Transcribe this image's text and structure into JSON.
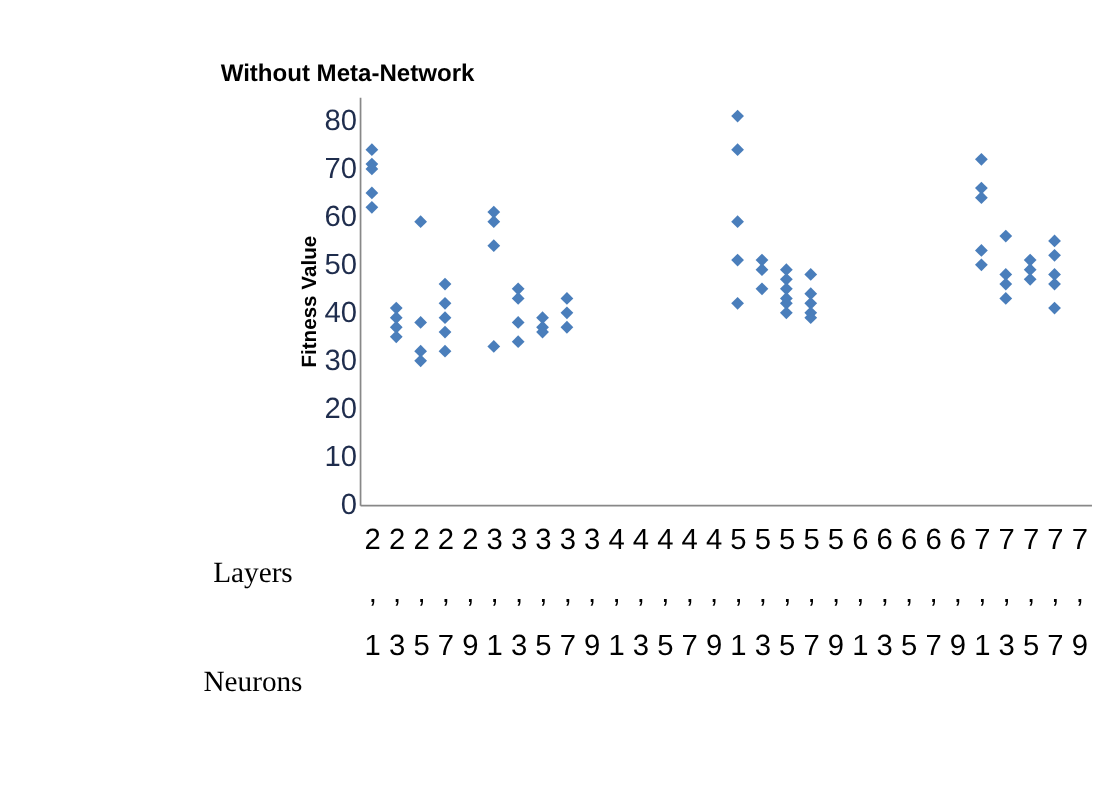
{
  "chart_data": {
    "type": "scatter",
    "title": "Without Meta-Network",
    "ylabel": "Fitness Value",
    "categories": [
      "2,1",
      "2,3",
      "2,5",
      "2,7",
      "2,9",
      "3,1",
      "3,3",
      "3,5",
      "3,7",
      "3,9",
      "4,1",
      "4,3",
      "4,5",
      "4,7",
      "4,9",
      "5,1",
      "5,3",
      "5,5",
      "5,7",
      "5,9",
      "6,1",
      "6,3",
      "6,5",
      "6,7",
      "6,9",
      "7,1",
      "7,3",
      "7,5",
      "7,7",
      "7,9"
    ],
    "series": [
      {
        "color": "#4a7ebb",
        "x": [
          "2,1",
          "2,1",
          "2,1",
          "2,1",
          "2,1",
          "2,3",
          "2,3",
          "2,3",
          "2,3",
          "2,5",
          "2,5",
          "2,5",
          "2,5",
          "2,7",
          "2,7",
          "2,7",
          "2,7",
          "2,7",
          "3,1",
          "3,1",
          "3,1",
          "3,1",
          "3,3",
          "3,3",
          "3,3",
          "3,3",
          "3,5",
          "3,5",
          "3,5",
          "3,7",
          "3,7",
          "3,7",
          "5,1",
          "5,1",
          "5,1",
          "5,1",
          "5,1",
          "5,3",
          "5,3",
          "5,3",
          "5,5",
          "5,5",
          "5,5",
          "5,5",
          "5,5",
          "5,5",
          "5,7",
          "5,7",
          "5,7",
          "5,7",
          "5,7",
          "7,1",
          "7,1",
          "7,1",
          "7,1",
          "7,1",
          "7,3",
          "7,3",
          "7,3",
          "7,3",
          "7,5",
          "7,5",
          "7,5",
          "7,7",
          "7,7",
          "7,7",
          "7,7",
          "7,7"
        ],
        "values": [
          74,
          71,
          70,
          65,
          62,
          41,
          39,
          37,
          35,
          59,
          38,
          32,
          30,
          46,
          42,
          39,
          36,
          32,
          61,
          59,
          54,
          33,
          45,
          43,
          38,
          34,
          39,
          37,
          36,
          43,
          40,
          37,
          81,
          74,
          59,
          51,
          42,
          51,
          49,
          45,
          49,
          47,
          45,
          43,
          42,
          40,
          48,
          44,
          42,
          40,
          39,
          72,
          66,
          64,
          53,
          50,
          56,
          48,
          46,
          43,
          51,
          49,
          47,
          55,
          52,
          48,
          46,
          41
        ]
      }
    ],
    "ylim": [
      0,
      85
    ],
    "yticks": [
      0,
      10,
      20,
      30,
      40,
      50,
      60,
      70,
      80
    ],
    "grid": false,
    "marker": "diamond",
    "annotations": [
      "Layers",
      "Neurons"
    ]
  }
}
